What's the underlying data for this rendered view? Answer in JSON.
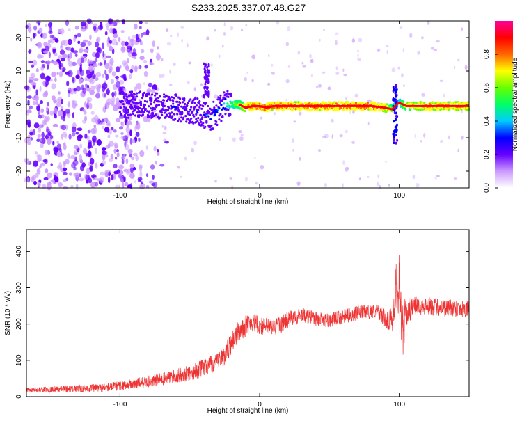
{
  "title": "S233.2025.337.07.48.G27",
  "chart_data": [
    {
      "type": "heatmap",
      "title": "S233.2025.337.07.48.G27",
      "xlabel": "Height of straight line (km)",
      "ylabel": "Frequency (Hz)",
      "xlim": [
        -167,
        150
      ],
      "ylim": [
        -25,
        25
      ],
      "xticks": [
        -100,
        0,
        100
      ],
      "yticks": [
        -20,
        -10,
        0,
        10,
        20
      ],
      "colorbar": {
        "label": "Normalized spectral amplitude",
        "range": [
          0,
          1
        ],
        "ticks": [
          "0.0",
          "0.2",
          "0.4",
          "0.6",
          "0.8"
        ],
        "colors": [
          "#ffffff",
          "#cc99ff",
          "#6600ff",
          "#0000ff",
          "#00ccff",
          "#00ff66",
          "#66ff00",
          "#ffff00",
          "#ff6600",
          "#ff0000",
          "#ff0099"
        ]
      },
      "track": {
        "x": [
          -100,
          -80,
          -60,
          -45,
          -35,
          -25,
          -15,
          -10,
          -5,
          0,
          5,
          10,
          20,
          40,
          60,
          80,
          90,
          95,
          98,
          100,
          105,
          120,
          150
        ],
        "freq": [
          0,
          0,
          -1,
          -2,
          -4,
          0,
          0,
          -1,
          -0.5,
          -0.5,
          -1,
          -0.5,
          -0.5,
          -0.5,
          -0.5,
          -0.5,
          -1,
          -1.5,
          0,
          0.5,
          -0.5,
          -0.5,
          -0.5
        ],
        "amplitude": [
          0.2,
          0.25,
          0.3,
          0.35,
          0.4,
          0.5,
          0.7,
          0.85,
          0.9,
          0.9,
          0.9,
          0.9,
          0.9,
          0.9,
          0.9,
          0.9,
          0.85,
          0.7,
          0.5,
          0.6,
          0.8,
          0.85,
          0.85
        ]
      },
      "noise_region_x": [
        -167,
        -95
      ]
    },
    {
      "type": "line",
      "xlabel": "Height of straight line (km)",
      "ylabel": "SNR (10 * v/v)",
      "xlim": [
        -167,
        150
      ],
      "ylim": [
        0,
        460
      ],
      "xticks": [
        -100,
        0,
        100
      ],
      "yticks": [
        0,
        100,
        200,
        300,
        400
      ],
      "color": "#ee3333",
      "series": [
        {
          "name": "SNR",
          "x": [
            -167,
            -150,
            -130,
            -110,
            -90,
            -70,
            -50,
            -40,
            -30,
            -25,
            -20,
            -15,
            -10,
            -5,
            0,
            10,
            20,
            30,
            40,
            50,
            60,
            70,
            80,
            85,
            90,
            95,
            98,
            100,
            102,
            105,
            110,
            120,
            130,
            140,
            150
          ],
          "values": [
            18,
            20,
            22,
            25,
            35,
            48,
            65,
            80,
            95,
            115,
            150,
            180,
            195,
            205,
            195,
            190,
            210,
            225,
            215,
            210,
            220,
            230,
            235,
            235,
            215,
            210,
            300,
            330,
            180,
            230,
            250,
            250,
            245,
            245,
            240
          ],
          "amplitude": [
            6,
            8,
            10,
            12,
            15,
            18,
            22,
            25,
            25,
            30,
            30,
            30,
            30,
            25,
            25,
            25,
            25,
            20,
            20,
            20,
            20,
            20,
            20,
            20,
            25,
            35,
            80,
            110,
            90,
            40,
            25,
            25,
            25,
            25,
            25
          ]
        }
      ]
    }
  ]
}
